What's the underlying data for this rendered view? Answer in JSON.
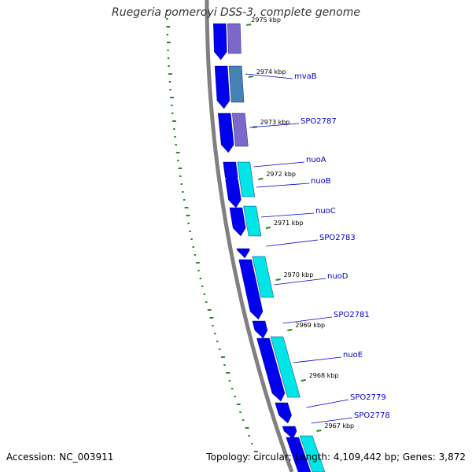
{
  "header": {
    "title": "Ruegeria pomeroyi DSS-3, complete genome"
  },
  "footer": {
    "accession": "Accession: NC_003911",
    "summary": "Topology: circular; Length: 4,109,442 bp; Genes: 3,872"
  },
  "colors": {
    "backbone": "#808080",
    "forward_strand": "#0000ee",
    "feature_cyan": "#00e5e5",
    "feature_purple": "#7b68c8",
    "feature_steel": "#4682b4",
    "gc_skew": "#228b22",
    "label_line": "#0000cc"
  },
  "ticks": [
    "2975 kbp",
    "2974 kbp",
    "2973 kbp",
    "2972 kbp",
    "2971 kbp",
    "2970 kbp",
    "2969 kbp",
    "2968 kbp",
    "2967 kbp"
  ],
  "genes": [
    "mvaB",
    "SPO2787",
    "nuoA",
    "nuoB",
    "nuoC",
    "SPO2783",
    "nuoD",
    "SPO2781",
    "nuoE",
    "SPO2779",
    "SPO2778"
  ]
}
